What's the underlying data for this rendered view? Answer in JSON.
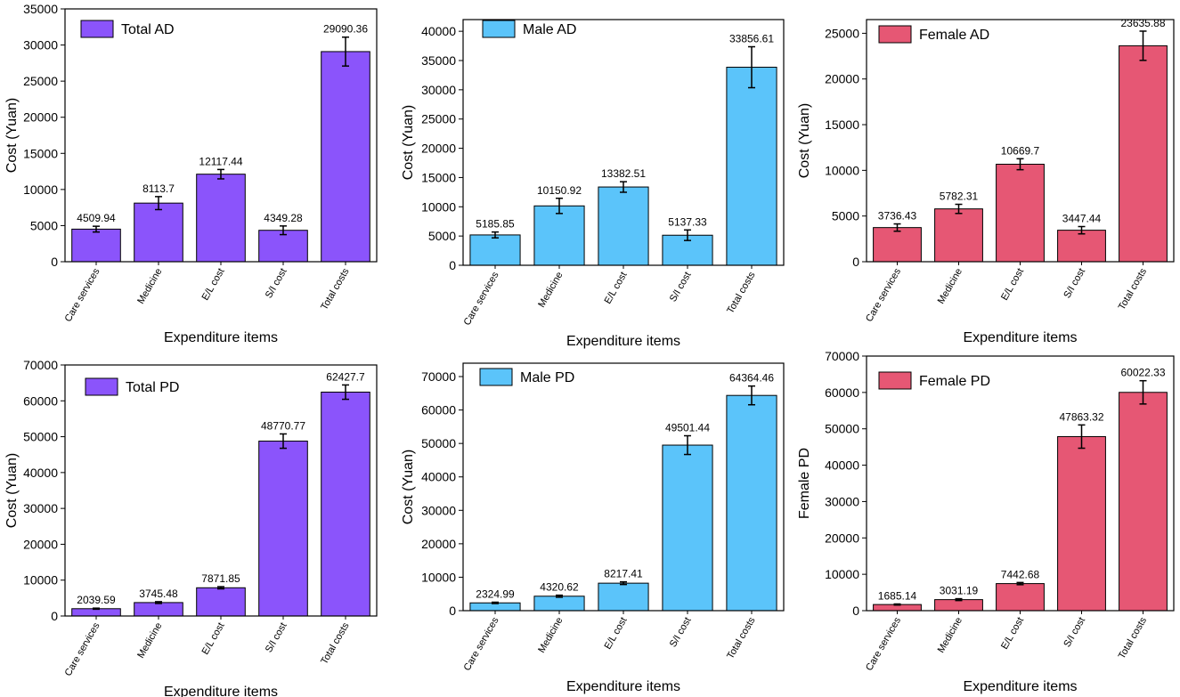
{
  "chart_data": [
    {
      "type": "bar",
      "legend": "Total AD",
      "color": "#8B54FB",
      "categories": [
        "Care services",
        "Medicine",
        "E/L cost",
        "S/I cost",
        "Total costs"
      ],
      "values": [
        4509.94,
        8113.7,
        12117.44,
        4349.28,
        29090.36
      ],
      "value_labels": [
        "4509.94",
        "8113.7",
        "12117.44",
        "4349.28",
        "29090.36"
      ],
      "errors": [
        400,
        900,
        650,
        600,
        2000
      ],
      "ylim": [
        0,
        35000
      ],
      "yticks": [
        0,
        5000,
        10000,
        15000,
        20000,
        25000,
        30000,
        35000
      ],
      "ylabel": "Cost (Yuan)",
      "xlabel": "Expenditure items",
      "legend_position": "top-left"
    },
    {
      "type": "bar",
      "legend": "Male AD",
      "color": "#5BC4FA",
      "categories": [
        "Care services",
        "Medicine",
        "E/L cost",
        "S/I cost",
        "Total costs"
      ],
      "values": [
        5185.85,
        10150.92,
        13382.51,
        5137.33,
        33856.61
      ],
      "value_labels": [
        "5185.85",
        "10150.92",
        "13382.51",
        "5137.33",
        "33856.61"
      ],
      "errors": [
        500,
        1300,
        900,
        900,
        3500
      ],
      "ylim": [
        0,
        42000
      ],
      "yticks": [
        0,
        5000,
        10000,
        15000,
        20000,
        25000,
        30000,
        35000,
        40000
      ],
      "ylabel": "Cost (Yuan)",
      "xlabel": "Expenditure items",
      "legend_position": "top-left"
    },
    {
      "type": "bar",
      "legend": "Female AD",
      "color": "#E65774",
      "categories": [
        "Care services",
        "Medicine",
        "E/L cost",
        "S/I cost",
        "Total costs"
      ],
      "values": [
        3736.43,
        5782.31,
        10669.7,
        3447.44,
        23635.88
      ],
      "value_labels": [
        "3736.43",
        "5782.31",
        "10669.7",
        "3447.44",
        "23635.88"
      ],
      "errors": [
        400,
        500,
        600,
        400,
        1600
      ],
      "ylim": [
        0,
        26500
      ],
      "yticks": [
        0,
        5000,
        10000,
        15000,
        20000,
        25000
      ],
      "ylabel": "Cost (Yuan)",
      "xlabel": "Expenditure items",
      "legend_position": "top-left"
    },
    {
      "type": "bar",
      "legend": "Total PD",
      "color": "#8B54FB",
      "categories": [
        "Care services",
        "Medicine",
        "E/L cost",
        "S/I cost",
        "Total costs"
      ],
      "values": [
        2039.59,
        3745.48,
        7871.85,
        48770.77,
        62427.7
      ],
      "value_labels": [
        "2039.59",
        "3745.48",
        "7871.85",
        "48770.77",
        "62427.7"
      ],
      "errors": [
        150,
        250,
        300,
        2000,
        2000
      ],
      "ylim": [
        0,
        70000
      ],
      "yticks": [
        0,
        10000,
        20000,
        30000,
        40000,
        50000,
        60000,
        70000
      ],
      "ylabel": "Cost (Yuan)",
      "xlabel": "Expenditure items",
      "legend_position": "top-left"
    },
    {
      "type": "bar",
      "legend": "Male PD",
      "color": "#5BC4FA",
      "categories": [
        "Care services",
        "Medicine",
        "E/L cost",
        "S/I cost",
        "Total costs"
      ],
      "values": [
        2324.99,
        4320.62,
        8217.41,
        49501.44,
        64364.46
      ],
      "value_labels": [
        "2324.99",
        "4320.62",
        "8217.41",
        "49501.44",
        "64364.46"
      ],
      "errors": [
        200,
        300,
        400,
        2800,
        2800
      ],
      "ylim": [
        0,
        74000
      ],
      "yticks": [
        0,
        10000,
        20000,
        30000,
        40000,
        50000,
        60000,
        70000
      ],
      "ylabel": "Cost (Yuan)",
      "xlabel": "Expenditure items",
      "legend_position": "top-left"
    },
    {
      "type": "bar",
      "legend": "Female PD",
      "color": "#E65774",
      "categories": [
        "Care services",
        "Medicine",
        "E/L cost",
        "S/I cost",
        "Total costs"
      ],
      "values": [
        1685.14,
        3031.19,
        7442.68,
        47863.32,
        60022.33
      ],
      "value_labels": [
        "1685.14",
        "3031.19",
        "7442.68",
        "47863.32",
        "60022.33"
      ],
      "errors": [
        150,
        250,
        300,
        3200,
        3200
      ],
      "ylim": [
        0,
        70000
      ],
      "yticks": [
        0,
        10000,
        20000,
        30000,
        40000,
        50000,
        60000,
        70000
      ],
      "ylabel": "Female PD",
      "xlabel": "Expenditure items",
      "legend_position": "top-left"
    }
  ]
}
